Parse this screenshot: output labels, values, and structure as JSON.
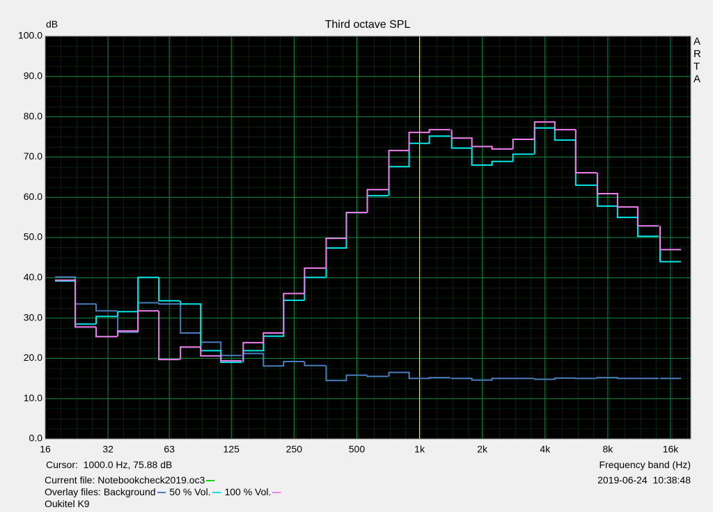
{
  "chart_data": {
    "type": "step",
    "title": "Third octave SPL",
    "y_label": "dB",
    "x_label": "Frequency band (Hz)",
    "watermark": "ARTA",
    "cursor": {
      "label": "Cursor:  1000.0 Hz, 75.88 dB",
      "x": 1000,
      "color": "#ffff40"
    },
    "current_file": {
      "label": "Current file: Notebookcheck2019.oc3",
      "color": "#00dd00"
    },
    "overlay_label": "Overlay files:",
    "timestamp": "2019-06-24  10:38:48",
    "device": "Oukitel K9",
    "x_log": true,
    "grid": true,
    "xlim": [
      16,
      20000
    ],
    "ylim": [
      0,
      100
    ],
    "xticks": [
      16,
      32,
      63,
      125,
      250,
      500,
      {
        "value": 1000,
        "label": "1k"
      },
      {
        "value": 2000,
        "label": "2k"
      },
      {
        "value": 4000,
        "label": "4k"
      },
      {
        "value": 8000,
        "label": "8k"
      },
      {
        "value": 16000,
        "label": "16k"
      }
    ],
    "yticks": [
      {
        "value": 0,
        "label": "0.0"
      },
      {
        "value": 10,
        "label": "10.0"
      },
      {
        "value": 20,
        "label": "20.0"
      },
      {
        "value": 30,
        "label": "30.0"
      },
      {
        "value": 40,
        "label": "40.0"
      },
      {
        "value": 50,
        "label": "50.0"
      },
      {
        "value": 60,
        "label": "60.0"
      },
      {
        "value": 70,
        "label": "70.0"
      },
      {
        "value": 80,
        "label": "80.0"
      },
      {
        "value": 90,
        "label": "90.0"
      },
      {
        "value": 100,
        "label": "100.0"
      }
    ],
    "x": [
      20,
      25,
      31.5,
      40,
      50,
      63,
      80,
      100,
      125,
      160,
      200,
      250,
      315,
      400,
      500,
      630,
      800,
      1000,
      1250,
      1600,
      2000,
      2500,
      3150,
      4000,
      5000,
      6300,
      8000,
      10000,
      12500,
      16000
    ],
    "series": [
      {
        "name": "Background",
        "color": "#4a7ebb",
        "values": [
          40.2,
          33.5,
          31.8,
          26.5,
          33.8,
          33.5,
          26.3,
          24,
          20.7,
          21.2,
          18.1,
          19.2,
          18.2,
          14.5,
          15.8,
          15.5,
          16.5,
          15,
          15.2,
          15,
          14.6,
          15,
          15,
          14.8,
          15.1,
          15,
          15.2,
          15,
          15,
          15
        ]
      },
      {
        "name": "50 % Vol.",
        "color": "#00e8e8",
        "values": [
          39.2,
          28.5,
          30.4,
          31.6,
          40.1,
          34.3,
          33.5,
          21.9,
          19,
          21.9,
          25.5,
          34.4,
          40.1,
          47.4,
          56.2,
          60.4,
          67.6,
          73.4,
          75.2,
          72.2,
          68,
          68.9,
          70.7,
          77.2,
          74.2,
          63,
          57.8,
          55,
          50.3,
          44
        ]
      },
      {
        "name": "100 % Vol.",
        "color": "#f080f0",
        "values": [
          39.4,
          27.8,
          25.4,
          26.8,
          31.8,
          19.7,
          22.8,
          20.6,
          19.4,
          23.9,
          26.3,
          36.1,
          42.4,
          49.8,
          56.2,
          61.9,
          71.6,
          76.1,
          76.8,
          74.7,
          72.6,
          72,
          74.4,
          78.7,
          76.8,
          66.1,
          60.9,
          57.6,
          52.9,
          47
        ]
      }
    ]
  }
}
